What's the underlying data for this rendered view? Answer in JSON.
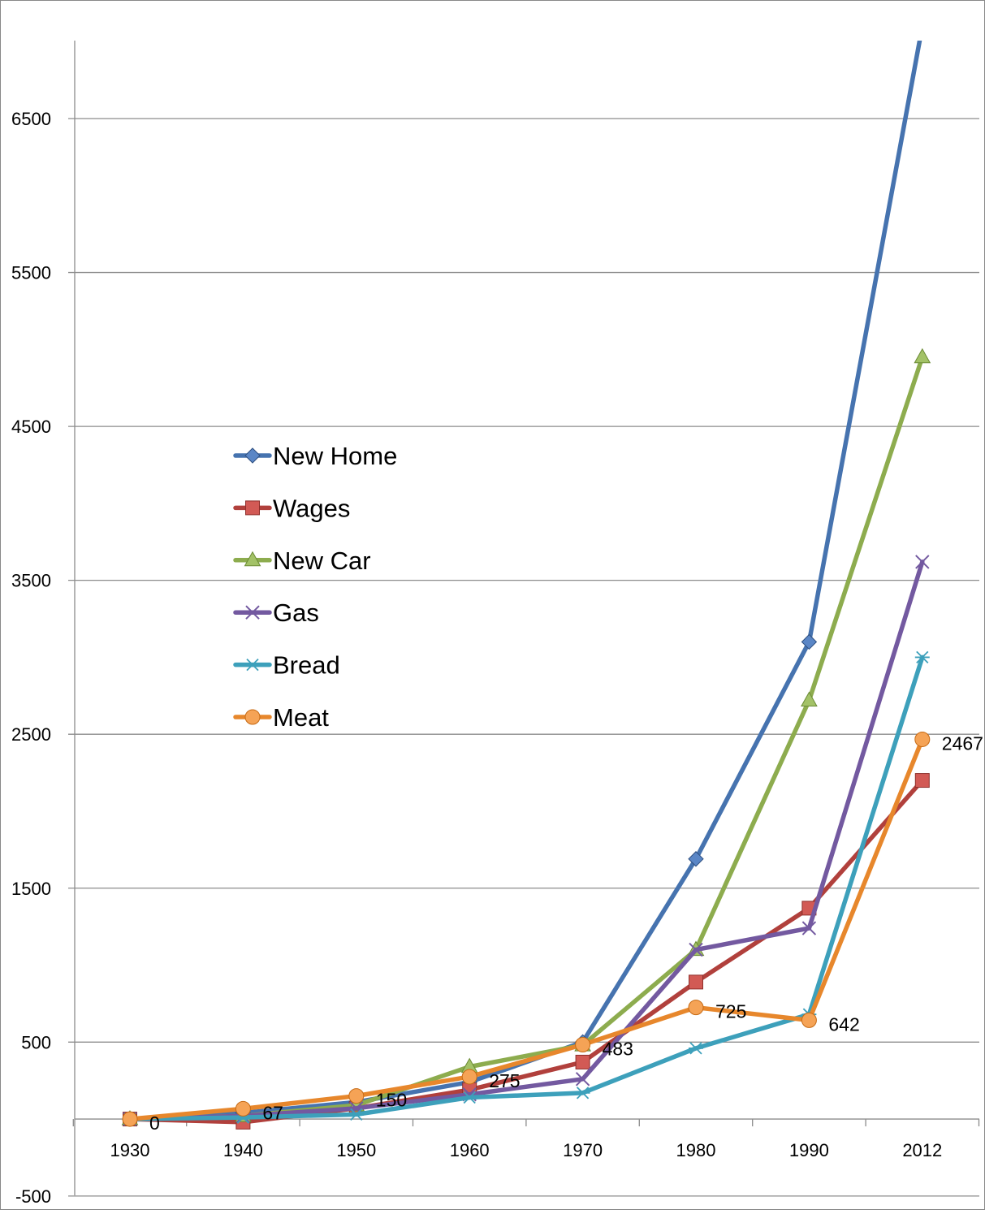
{
  "chart_data": {
    "type": "line",
    "title": "",
    "xlabel": "",
    "ylabel": "",
    "categories": [
      "1930",
      "1940",
      "1950",
      "1960",
      "1970",
      "1980",
      "1990",
      "2012"
    ],
    "ylim": [
      -500,
      7000
    ],
    "yticks": [
      -500,
      500,
      1500,
      2500,
      3500,
      4500,
      5500,
      6500
    ],
    "ytick_labels": [
      "-500",
      "500",
      "1500",
      "2500",
      "3500",
      "4500",
      "5500",
      "6500"
    ],
    "grid": "horizontal",
    "legend_position": "center-left",
    "series": [
      {
        "name": "New Home",
        "color": "#4673AF",
        "marker": "diamond",
        "values": [
          0,
          40,
          110,
          240,
          500,
          1690,
          3100,
          7100
        ]
      },
      {
        "name": "Wages",
        "color": "#B1403C",
        "marker": "square",
        "values": [
          0,
          -20,
          70,
          190,
          370,
          890,
          1370,
          2200
        ]
      },
      {
        "name": "New Car",
        "color": "#8DAC4E",
        "marker": "triangle",
        "values": [
          0,
          20,
          90,
          340,
          480,
          1100,
          2720,
          4950
        ]
      },
      {
        "name": "Gas",
        "color": "#7359A0",
        "marker": "x",
        "values": [
          0,
          20,
          70,
          160,
          260,
          1100,
          1240,
          3620
        ]
      },
      {
        "name": "Bread",
        "color": "#3DA0BB",
        "marker": "star",
        "values": [
          0,
          10,
          30,
          140,
          170,
          460,
          680,
          3000
        ]
      },
      {
        "name": "Meat",
        "color": "#E7872C",
        "marker": "circle",
        "values": [
          0,
          67,
          150,
          275,
          483,
          725,
          642,
          2467
        ]
      }
    ],
    "data_labels": {
      "series": "Meat",
      "labels": [
        "0",
        "67",
        "150",
        "275",
        "483",
        "725",
        "642",
        "2467"
      ]
    }
  }
}
